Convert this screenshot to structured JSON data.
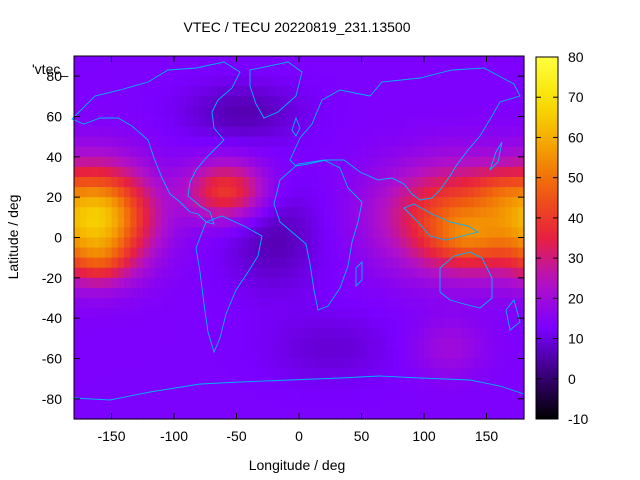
{
  "chart_data": {
    "type": "heatmap",
    "title": "VTEC / TECU 20220819_231.13500",
    "xlabel": "Longitude / deg",
    "ylabel": "Latitude / deg",
    "xlim": [
      -180,
      180
    ],
    "ylim": [
      -90,
      90
    ],
    "x_ticks": [
      -150,
      -100,
      -50,
      0,
      50,
      100,
      150
    ],
    "y_ticks": [
      -80,
      -60,
      -40,
      -20,
      0,
      20,
      40,
      60,
      80
    ],
    "series_label": "'vtec_",
    "colorbar": {
      "min": -10,
      "max": 80,
      "ticks": [
        -10,
        0,
        10,
        20,
        30,
        40,
        50,
        60,
        70,
        80
      ],
      "palette": [
        "#000000",
        "#3a007a",
        "#7a00ff",
        "#b210c8",
        "#e82040",
        "#f05a10",
        "#f4a000",
        "#f8e000",
        "#ffff40"
      ]
    },
    "blobs": [
      {
        "lon": -158,
        "lat": 10,
        "sx": 28,
        "sy": 17,
        "value": 45
      },
      {
        "lon": -160,
        "lat": -12,
        "sx": 18,
        "sy": 8,
        "value": 12
      },
      {
        "lon": -58,
        "lat": 23,
        "sx": 22,
        "sy": 10,
        "value": 27
      },
      {
        "lon": 128,
        "lat": 10,
        "sx": 42,
        "sy": 18,
        "value": 32
      },
      {
        "lon": 135,
        "lat": -2,
        "sx": 22,
        "sy": 10,
        "value": 12
      },
      {
        "lon": 160,
        "lat": 24,
        "sx": 14,
        "sy": 7,
        "value": 6
      },
      {
        "lon": -20,
        "lat": 0,
        "sx": 26,
        "sy": 18,
        "value": -7
      },
      {
        "lon": -45,
        "lat": 62,
        "sx": 32,
        "sy": 10,
        "value": -7
      },
      {
        "lon": 25,
        "lat": -55,
        "sx": 35,
        "sy": 12,
        "value": -4
      },
      {
        "lon": 120,
        "lat": -55,
        "sx": 20,
        "sy": 10,
        "value": 7
      }
    ],
    "base_value": 13
  },
  "colors": {
    "coastline": "#00b4ff",
    "axis": "#000000"
  }
}
